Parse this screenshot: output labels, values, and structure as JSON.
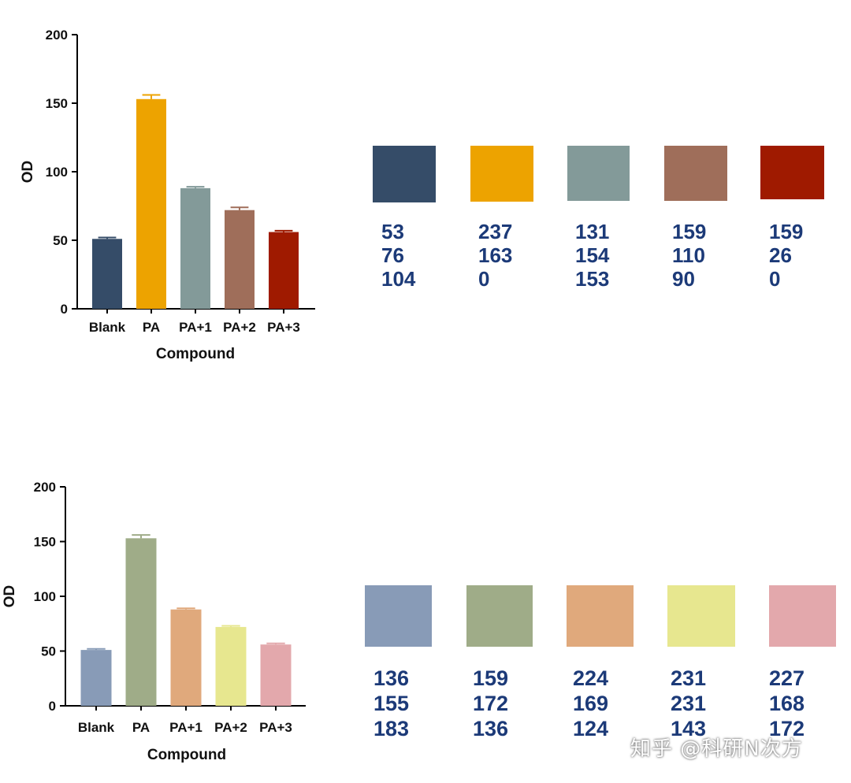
{
  "chart_data": [
    {
      "type": "bar",
      "title": "",
      "xlabel": "Compound",
      "ylabel": "OD",
      "ylim": [
        0,
        200
      ],
      "yticks": [
        0,
        50,
        100,
        150,
        200
      ],
      "categories": [
        "Blank",
        "PA",
        "PA+1",
        "PA+2",
        "PA+3"
      ],
      "values": [
        51,
        153,
        88,
        72,
        56
      ],
      "errors": [
        1,
        3,
        1,
        2,
        1
      ],
      "colors": [
        "#354C68",
        "#EDA300",
        "#839A99",
        "#9F6E5A",
        "#9F1A00"
      ]
    },
    {
      "type": "bar",
      "title": "",
      "xlabel": "Compound",
      "ylabel": "OD",
      "ylim": [
        0,
        200
      ],
      "yticks": [
        0,
        50,
        100,
        150,
        200
      ],
      "categories": [
        "Blank",
        "PA",
        "PA+1",
        "PA+2",
        "PA+3"
      ],
      "values": [
        51,
        153,
        88,
        72,
        56
      ],
      "errors": [
        1,
        3,
        1,
        1,
        1
      ],
      "colors": [
        "#889BB7",
        "#9FAC88",
        "#E0A97C",
        "#E7E78F",
        "#E3A8AC"
      ]
    }
  ],
  "palettes": [
    {
      "swatches": [
        {
          "color": "#354C68",
          "rgb": [
            "53",
            "76",
            "104"
          ]
        },
        {
          "color": "#EDA300",
          "rgb": [
            "237",
            "163",
            "0"
          ]
        },
        {
          "color": "#839A99",
          "rgb": [
            "131",
            "154",
            "153"
          ]
        },
        {
          "color": "#9F6E5A",
          "rgb": [
            "159",
            "110",
            "90"
          ]
        },
        {
          "color": "#9F1A00",
          "rgb": [
            "159",
            "26",
            "0"
          ]
        }
      ]
    },
    {
      "swatches": [
        {
          "color": "#889BB7",
          "rgb": [
            "136",
            "155",
            "183"
          ]
        },
        {
          "color": "#9FAC88",
          "rgb": [
            "159",
            "172",
            "136"
          ]
        },
        {
          "color": "#E0A97C",
          "rgb": [
            "224",
            "169",
            "124"
          ]
        },
        {
          "color": "#E7E78F",
          "rgb": [
            "231",
            "231",
            "143"
          ]
        },
        {
          "color": "#E3A8AC",
          "rgb": [
            "227",
            "168",
            "172"
          ]
        }
      ]
    }
  ],
  "watermark": "知乎 @科研N次方"
}
